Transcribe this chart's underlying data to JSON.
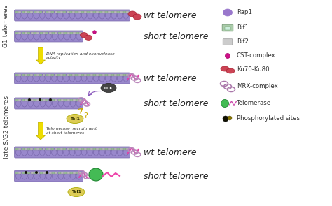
{
  "background_color": "#ffffff",
  "g1_label": "G1 telomeres",
  "late_label": "late S/G2 telomeres",
  "wt_telomere": "wt telomere",
  "short_telomere": "short telomere",
  "arrow1_text": "DNA replication and exonuclease\nactivity",
  "arrow2_text": "Telomerase  recruitment\nat short telomeres",
  "helix_color": "#9988CC",
  "helix_outline": "#7766AA",
  "cap_color_green": "#99BB99",
  "cap_color_gray": "#BBBBBB",
  "arrow_color": "#EEDD00",
  "arrow_outline": "#BBAA00",
  "ku_color": "#CC4455",
  "mrx_color": "#BB88BB",
  "tel1_color": "#DDCC55",
  "cst_color": "#CC1188",
  "telomerase_color": "#44BB55",
  "legend_items": [
    {
      "label": "Rap1",
      "type": "oval",
      "color": "#9977CC"
    },
    {
      "label": "Rif1",
      "type": "rect_green",
      "color": "#99BB99"
    },
    {
      "label": "Rif2",
      "type": "rect_gray",
      "color": "#BBBBBB"
    },
    {
      "label": "CST-complex",
      "type": "dot_magenta",
      "color": "#CC1188"
    },
    {
      "label": "Ku70-Ku80",
      "type": "double_oval_red",
      "color": "#CC4455"
    },
    {
      "label": "MRX-complex",
      "type": "rings_purple",
      "color": "#BB88BB"
    },
    {
      "label": "Telomerase",
      "type": "telomerase",
      "color": "#44BB55"
    },
    {
      "label": "Phosphorylated sites",
      "type": "dot_dark",
      "color": "#333300"
    }
  ]
}
